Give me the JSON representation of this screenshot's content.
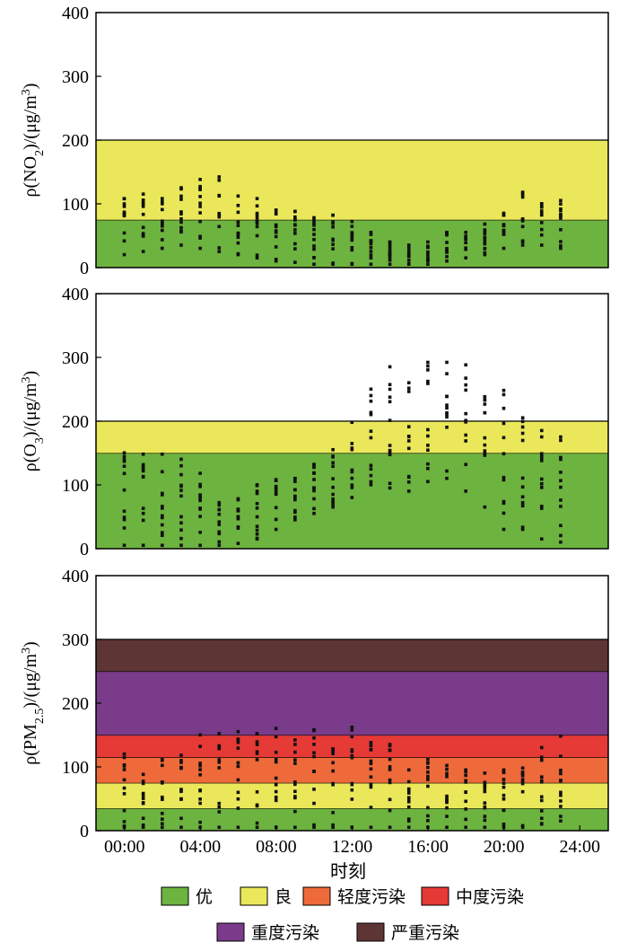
{
  "chart_data": {
    "type": "scatter",
    "xlabel": "时刻",
    "x_ticks": [
      "00:00",
      "04:00",
      "08:00",
      "12:00",
      "16:00",
      "20:00",
      "24:00"
    ],
    "xlim": [
      -1.5,
      25.5
    ],
    "legend": {
      "placement": "bottom",
      "entries": [
        {
          "name": "优",
          "color": "#6db33f"
        },
        {
          "name": "良",
          "color": "#eae85a"
        },
        {
          "name": "轻度污染",
          "color": "#ee6a3a"
        },
        {
          "name": "中度污染",
          "color": "#e53a36"
        },
        {
          "name": "重度污染",
          "color": "#7a3b8a"
        },
        {
          "name": "严重污染",
          "color": "#5e3535"
        }
      ]
    },
    "panels": [
      {
        "id": "no2",
        "ylabel_prefix": "ρ(NO",
        "ylabel_sub": "2",
        "ylabel_mid": ")/(μg/m",
        "ylabel_sup": "3",
        "ylabel_suffix": ")",
        "ylim": [
          0,
          400
        ],
        "y_ticks": [
          "0",
          "100",
          "200",
          "300",
          "400"
        ],
        "bands": [
          {
            "from": 0,
            "to": 75,
            "color": "#6db33f"
          },
          {
            "from": 75,
            "to": 200,
            "color": "#eae85a"
          }
        ],
        "series": [
          {
            "x": 0,
            "min": 20,
            "max": 108
          },
          {
            "x": 1,
            "min": 25,
            "max": 115
          },
          {
            "x": 2,
            "min": 30,
            "max": 108
          },
          {
            "x": 3,
            "min": 35,
            "max": 125
          },
          {
            "x": 4,
            "min": 30,
            "max": 138
          },
          {
            "x": 5,
            "min": 25,
            "max": 142
          },
          {
            "x": 6,
            "min": 20,
            "max": 112
          },
          {
            "x": 7,
            "min": 15,
            "max": 108
          },
          {
            "x": 8,
            "min": 10,
            "max": 90
          },
          {
            "x": 9,
            "min": 8,
            "max": 88
          },
          {
            "x": 10,
            "min": 5,
            "max": 78
          },
          {
            "x": 11,
            "min": 5,
            "max": 82
          },
          {
            "x": 12,
            "min": 5,
            "max": 72
          },
          {
            "x": 13,
            "min": 5,
            "max": 55
          },
          {
            "x": 14,
            "min": 5,
            "max": 40
          },
          {
            "x": 15,
            "min": 5,
            "max": 35
          },
          {
            "x": 16,
            "min": 5,
            "max": 40
          },
          {
            "x": 17,
            "min": 10,
            "max": 55
          },
          {
            "x": 18,
            "min": 15,
            "max": 55
          },
          {
            "x": 19,
            "min": 20,
            "max": 68
          },
          {
            "x": 20,
            "min": 30,
            "max": 85
          },
          {
            "x": 21,
            "min": 35,
            "max": 118
          },
          {
            "x": 22,
            "min": 35,
            "max": 100
          },
          {
            "x": 23,
            "min": 30,
            "max": 105
          }
        ]
      },
      {
        "id": "o3",
        "ylabel_prefix": "ρ(O",
        "ylabel_sub": "3",
        "ylabel_mid": ")/(μg/m",
        "ylabel_sup": "3",
        "ylabel_suffix": ")",
        "ylim": [
          0,
          400
        ],
        "y_ticks": [
          "0",
          "100",
          "200",
          "300",
          "400"
        ],
        "bands": [
          {
            "from": 0,
            "to": 150,
            "color": "#6db33f"
          },
          {
            "from": 150,
            "to": 200,
            "color": "#eae85a"
          }
        ],
        "series": [
          {
            "x": 0,
            "min": 5,
            "max": 150
          },
          {
            "x": 1,
            "min": 5,
            "max": 148
          },
          {
            "x": 2,
            "min": 5,
            "max": 148
          },
          {
            "x": 3,
            "min": 5,
            "max": 140
          },
          {
            "x": 4,
            "min": 5,
            "max": 118
          },
          {
            "x": 5,
            "min": 5,
            "max": 72
          },
          {
            "x": 6,
            "min": 8,
            "max": 78
          },
          {
            "x": 7,
            "min": 15,
            "max": 100
          },
          {
            "x": 8,
            "min": 30,
            "max": 108
          },
          {
            "x": 9,
            "min": 45,
            "max": 110
          },
          {
            "x": 10,
            "min": 55,
            "max": 132
          },
          {
            "x": 11,
            "min": 65,
            "max": 155
          },
          {
            "x": 12,
            "min": 80,
            "max": 198
          },
          {
            "x": 13,
            "min": 100,
            "max": 250
          },
          {
            "x": 14,
            "min": 95,
            "max": 285
          },
          {
            "x": 15,
            "min": 90,
            "max": 260
          },
          {
            "x": 16,
            "min": 105,
            "max": 292
          },
          {
            "x": 17,
            "min": 110,
            "max": 292
          },
          {
            "x": 18,
            "min": 90,
            "max": 288
          },
          {
            "x": 19,
            "min": 65,
            "max": 238
          },
          {
            "x": 20,
            "min": 30,
            "max": 248
          },
          {
            "x": 21,
            "min": 30,
            "max": 205
          },
          {
            "x": 22,
            "min": 15,
            "max": 185
          },
          {
            "x": 23,
            "min": 10,
            "max": 175
          }
        ]
      },
      {
        "id": "pm25",
        "ylabel_prefix": "ρ(PM",
        "ylabel_sub": "2.5",
        "ylabel_mid": ")/(μg/m",
        "ylabel_sup": "3",
        "ylabel_suffix": ")",
        "ylim": [
          0,
          400
        ],
        "y_ticks": [
          "0",
          "100",
          "200",
          "300",
          "400"
        ],
        "bands": [
          {
            "from": 0,
            "to": 35,
            "color": "#6db33f"
          },
          {
            "from": 35,
            "to": 75,
            "color": "#eae85a"
          },
          {
            "from": 75,
            "to": 115,
            "color": "#ee6a3a"
          },
          {
            "from": 115,
            "to": 150,
            "color": "#e53a36"
          },
          {
            "from": 150,
            "to": 250,
            "color": "#7a3b8a"
          },
          {
            "from": 250,
            "to": 300,
            "color": "#5e3535"
          }
        ],
        "series": [
          {
            "x": 0,
            "min": 5,
            "max": 120
          },
          {
            "x": 1,
            "min": 5,
            "max": 88
          },
          {
            "x": 2,
            "min": 5,
            "max": 112
          },
          {
            "x": 3,
            "min": 5,
            "max": 118
          },
          {
            "x": 4,
            "min": 5,
            "max": 150
          },
          {
            "x": 5,
            "min": 5,
            "max": 152
          },
          {
            "x": 6,
            "min": 5,
            "max": 155
          },
          {
            "x": 7,
            "min": 5,
            "max": 152
          },
          {
            "x": 8,
            "min": 5,
            "max": 160
          },
          {
            "x": 9,
            "min": 5,
            "max": 142
          },
          {
            "x": 10,
            "min": 5,
            "max": 158
          },
          {
            "x": 11,
            "min": 5,
            "max": 128
          },
          {
            "x": 12,
            "min": 5,
            "max": 162
          },
          {
            "x": 13,
            "min": 5,
            "max": 138
          },
          {
            "x": 14,
            "min": 5,
            "max": 135
          },
          {
            "x": 15,
            "min": 5,
            "max": 95
          },
          {
            "x": 16,
            "min": 5,
            "max": 112
          },
          {
            "x": 17,
            "min": 5,
            "max": 102
          },
          {
            "x": 18,
            "min": 5,
            "max": 95
          },
          {
            "x": 19,
            "min": 5,
            "max": 90
          },
          {
            "x": 20,
            "min": 5,
            "max": 95
          },
          {
            "x": 21,
            "min": 5,
            "max": 98
          },
          {
            "x": 22,
            "min": 10,
            "max": 130
          },
          {
            "x": 23,
            "min": 15,
            "max": 148
          }
        ]
      }
    ]
  }
}
